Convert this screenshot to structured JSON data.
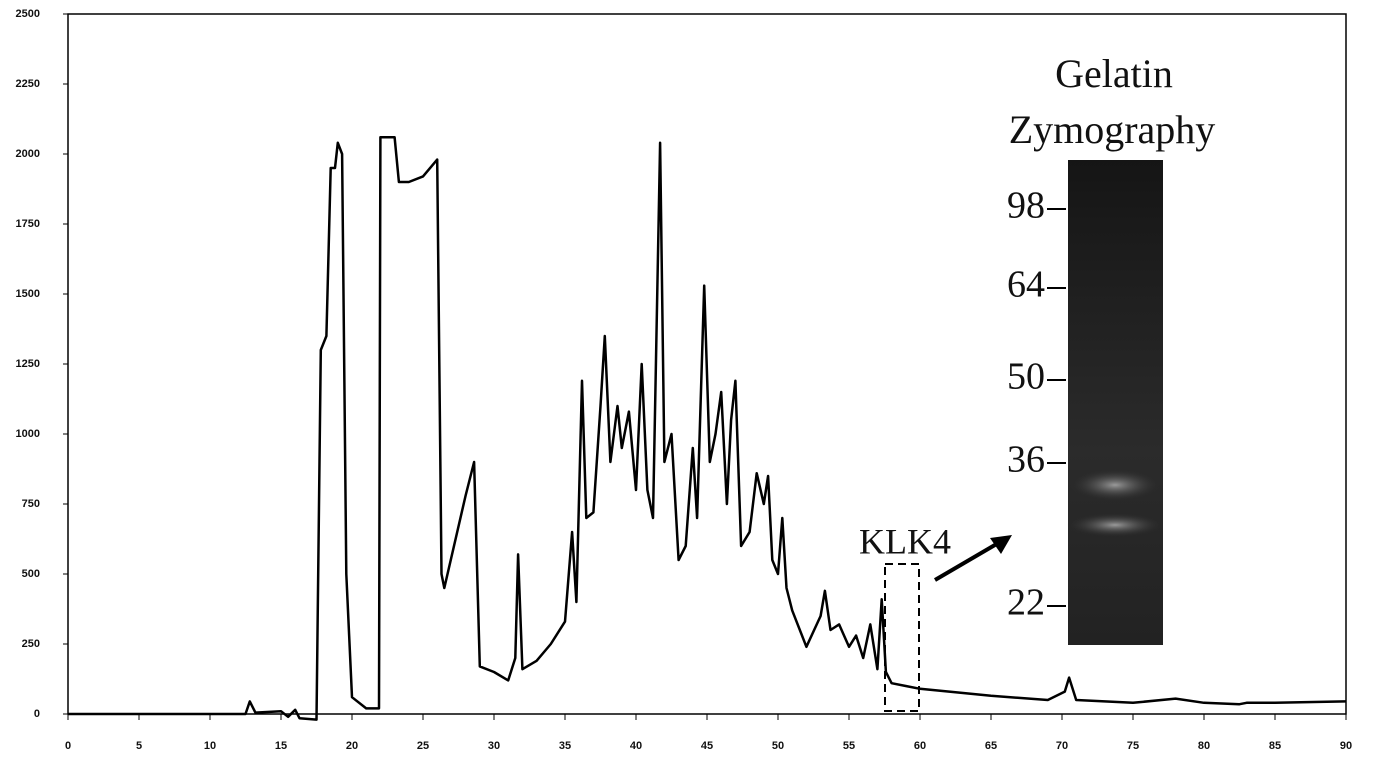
{
  "chart_data": {
    "type": "line",
    "x": [
      0,
      12.5,
      12.8,
      13.2,
      15,
      15.5,
      16,
      16.3,
      17.5,
      17.8,
      18.2,
      18.5,
      18.8,
      19,
      19.3,
      19.6,
      20,
      21,
      21.9,
      22,
      23,
      23.3,
      24,
      25,
      26,
      26.3,
      26.5,
      28,
      28.6,
      29,
      30,
      31,
      31.5,
      31.7,
      32,
      33,
      34,
      35,
      35.5,
      35.8,
      36.2,
      36.5,
      37,
      37.5,
      37.8,
      38.2,
      38.7,
      39,
      39.5,
      40,
      40.4,
      40.8,
      41.2,
      41.7,
      42,
      42.5,
      43,
      43.5,
      44,
      44.3,
      44.8,
      45.2,
      45.6,
      46,
      46.4,
      46.7,
      47,
      47.4,
      48,
      48.5,
      49,
      49.3,
      49.6,
      50,
      50.3,
      50.6,
      51,
      52,
      53,
      53.3,
      53.7,
      54.3,
      55,
      55.5,
      56,
      56.5,
      57,
      57.3,
      57.6,
      58,
      59,
      60,
      65,
      69,
      70.2,
      70.5,
      71,
      75,
      78,
      80,
      82.5,
      83,
      85,
      90
    ],
    "values": [
      0,
      0,
      45,
      5,
      10,
      -10,
      15,
      -15,
      -20,
      1300,
      1350,
      1950,
      1950,
      2040,
      2000,
      500,
      60,
      20,
      20,
      2060,
      2060,
      1900,
      1900,
      1920,
      1980,
      500,
      450,
      780,
      900,
      170,
      150,
      120,
      200,
      570,
      160,
      190,
      250,
      330,
      650,
      400,
      1190,
      700,
      720,
      1100,
      1350,
      900,
      1100,
      950,
      1080,
      800,
      1250,
      800,
      700,
      2040,
      900,
      1000,
      550,
      600,
      950,
      700,
      1530,
      900,
      1000,
      1150,
      750,
      1050,
      1190,
      600,
      650,
      860,
      750,
      850,
      550,
      500,
      700,
      450,
      370,
      240,
      350,
      440,
      300,
      320,
      240,
      280,
      200,
      320,
      160,
      410,
      150,
      110,
      100,
      90,
      65,
      50,
      80,
      130,
      50,
      40,
      55,
      40,
      35,
      40,
      40,
      45
    ],
    "color": "#000000",
    "xlim": [
      0,
      90
    ],
    "xticks": [
      0,
      5,
      10,
      15,
      20,
      25,
      30,
      35,
      40,
      45,
      50,
      55,
      60,
      65,
      70,
      75,
      80,
      85,
      90
    ],
    "ylim": [
      0,
      2500
    ],
    "yticks": [
      0,
      250,
      500,
      750,
      1000,
      1250,
      1500,
      1750,
      2000,
      2250,
      2500
    ],
    "annotation": "KLK4",
    "inset": {
      "title_lines": [
        "Gelatin",
        "Zymography"
      ],
      "markers": [
        98,
        64,
        50,
        36,
        22
      ]
    }
  }
}
